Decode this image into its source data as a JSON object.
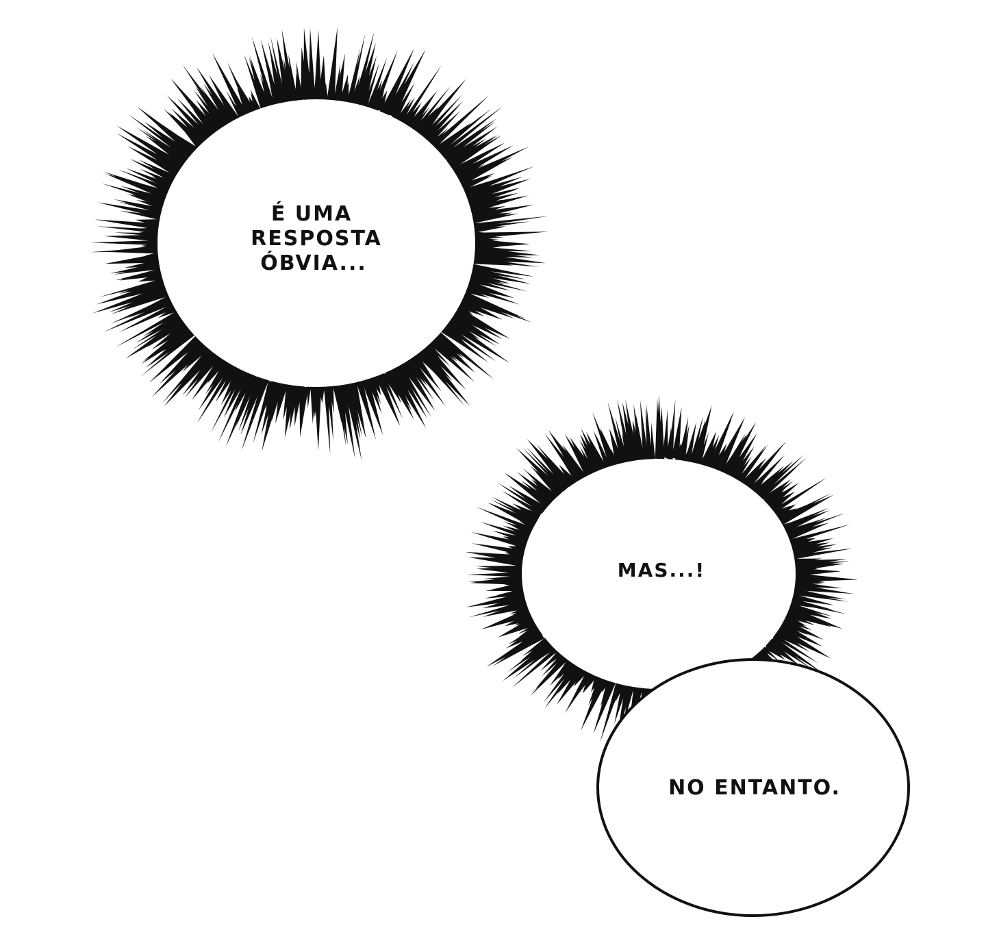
{
  "page": {
    "background": "#ffffff",
    "ink_color": "#111111"
  },
  "bubbles": [
    {
      "id": "burst-1",
      "style": "spiky-burst",
      "lines": [
        "É UMA",
        "RESPOSTA",
        "ÓBVIA..."
      ]
    },
    {
      "id": "burst-2",
      "style": "spiky-burst",
      "lines": [
        "MAS...!"
      ]
    },
    {
      "id": "oval-1",
      "style": "plain-oval",
      "lines": [
        "NO ENTANTO."
      ]
    }
  ]
}
